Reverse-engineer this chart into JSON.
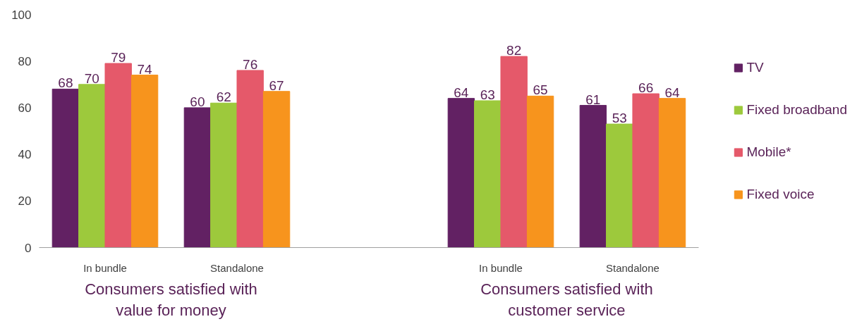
{
  "chart_data": {
    "type": "bar",
    "categories": [
      "In bundle",
      "Standalone",
      null,
      "In bundle",
      "Standalone"
    ],
    "series": [
      {
        "name": "TV",
        "color": "#622163",
        "values": [
          68,
          60,
          null,
          64,
          61
        ]
      },
      {
        "name": "Fixed broadband",
        "color": "#9dc93c",
        "values": [
          70,
          62,
          null,
          63,
          53
        ]
      },
      {
        "name": "Mobile*",
        "color": "#e5596a",
        "values": [
          79,
          76,
          null,
          82,
          66
        ]
      },
      {
        "name": "Fixed voice",
        "color": "#f7941d",
        "values": [
          74,
          67,
          null,
          65,
          64
        ]
      }
    ],
    "annotations": [
      "Consumers satisfied with value for money",
      "Consumers satisfied with customer service"
    ],
    "ylim": [
      0,
      100
    ],
    "yticks": [
      0,
      20,
      40,
      60,
      80,
      100
    ],
    "grid": false,
    "legend": "right",
    "data_labels": true
  }
}
